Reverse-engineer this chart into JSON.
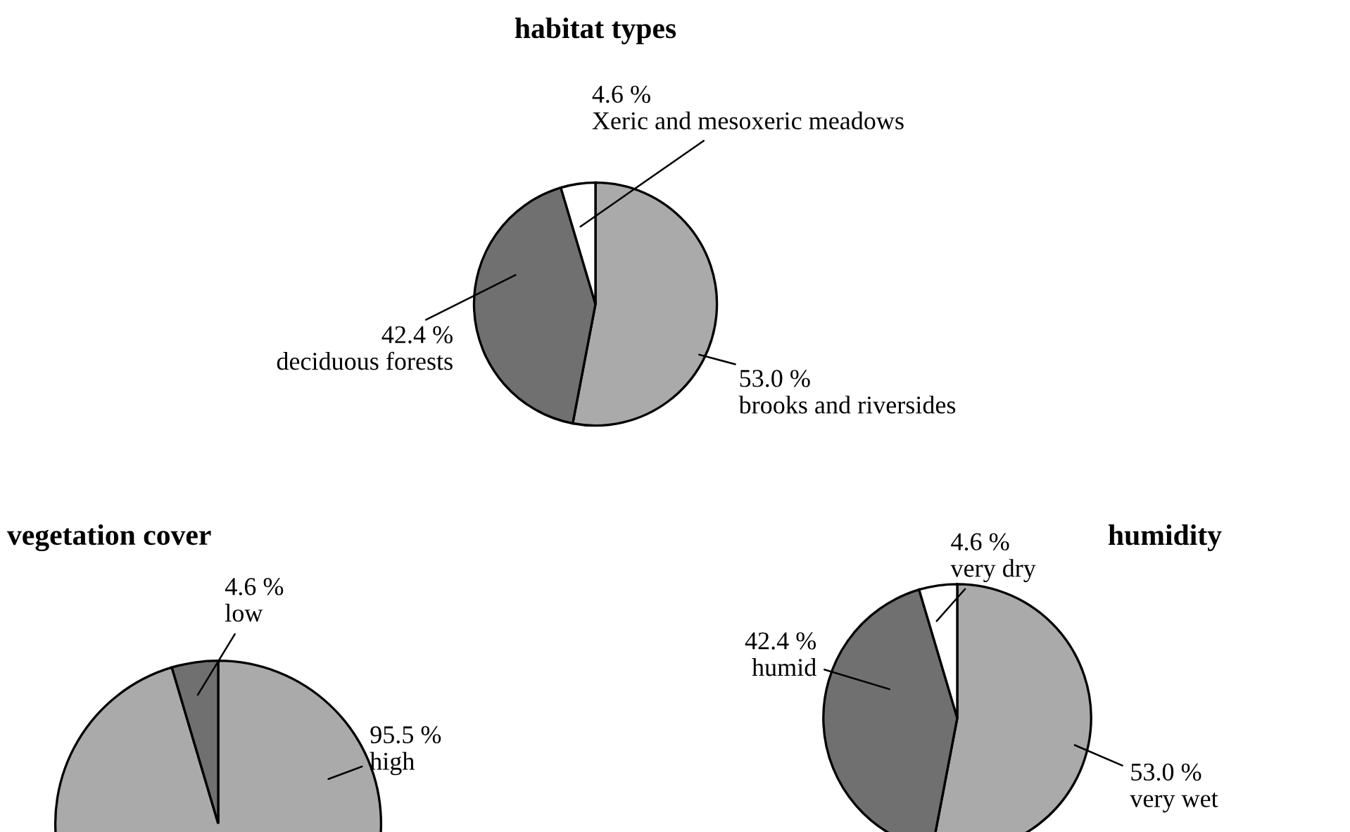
{
  "chart_data": [
    {
      "type": "pie",
      "title": "habitat types",
      "categories": [
        "brooks and riversides",
        "deciduous forests",
        "Xeric and mesoxeric meadows"
      ],
      "values": [
        53.0,
        42.4,
        4.6
      ],
      "colors": [
        "#aaaaaa",
        "#707070",
        "#ffffff"
      ],
      "value_labels": [
        "53.0 %",
        "42.4 %",
        "4.6 %"
      ]
    },
    {
      "type": "pie",
      "title": "vegetation cover",
      "categories": [
        "high",
        "low"
      ],
      "values": [
        95.5,
        4.6
      ],
      "colors": [
        "#aaaaaa",
        "#707070"
      ],
      "value_labels": [
        "95.5 %",
        "4.6 %"
      ]
    },
    {
      "type": "pie",
      "title": "humidity",
      "categories": [
        "very wet",
        "humid",
        "very dry"
      ],
      "values": [
        53.0,
        42.4,
        4.6
      ],
      "colors": [
        "#aaaaaa",
        "#707070",
        "#ffffff"
      ],
      "value_labels": [
        "53.0 %",
        "42.4 %",
        "4.6 %"
      ]
    }
  ]
}
